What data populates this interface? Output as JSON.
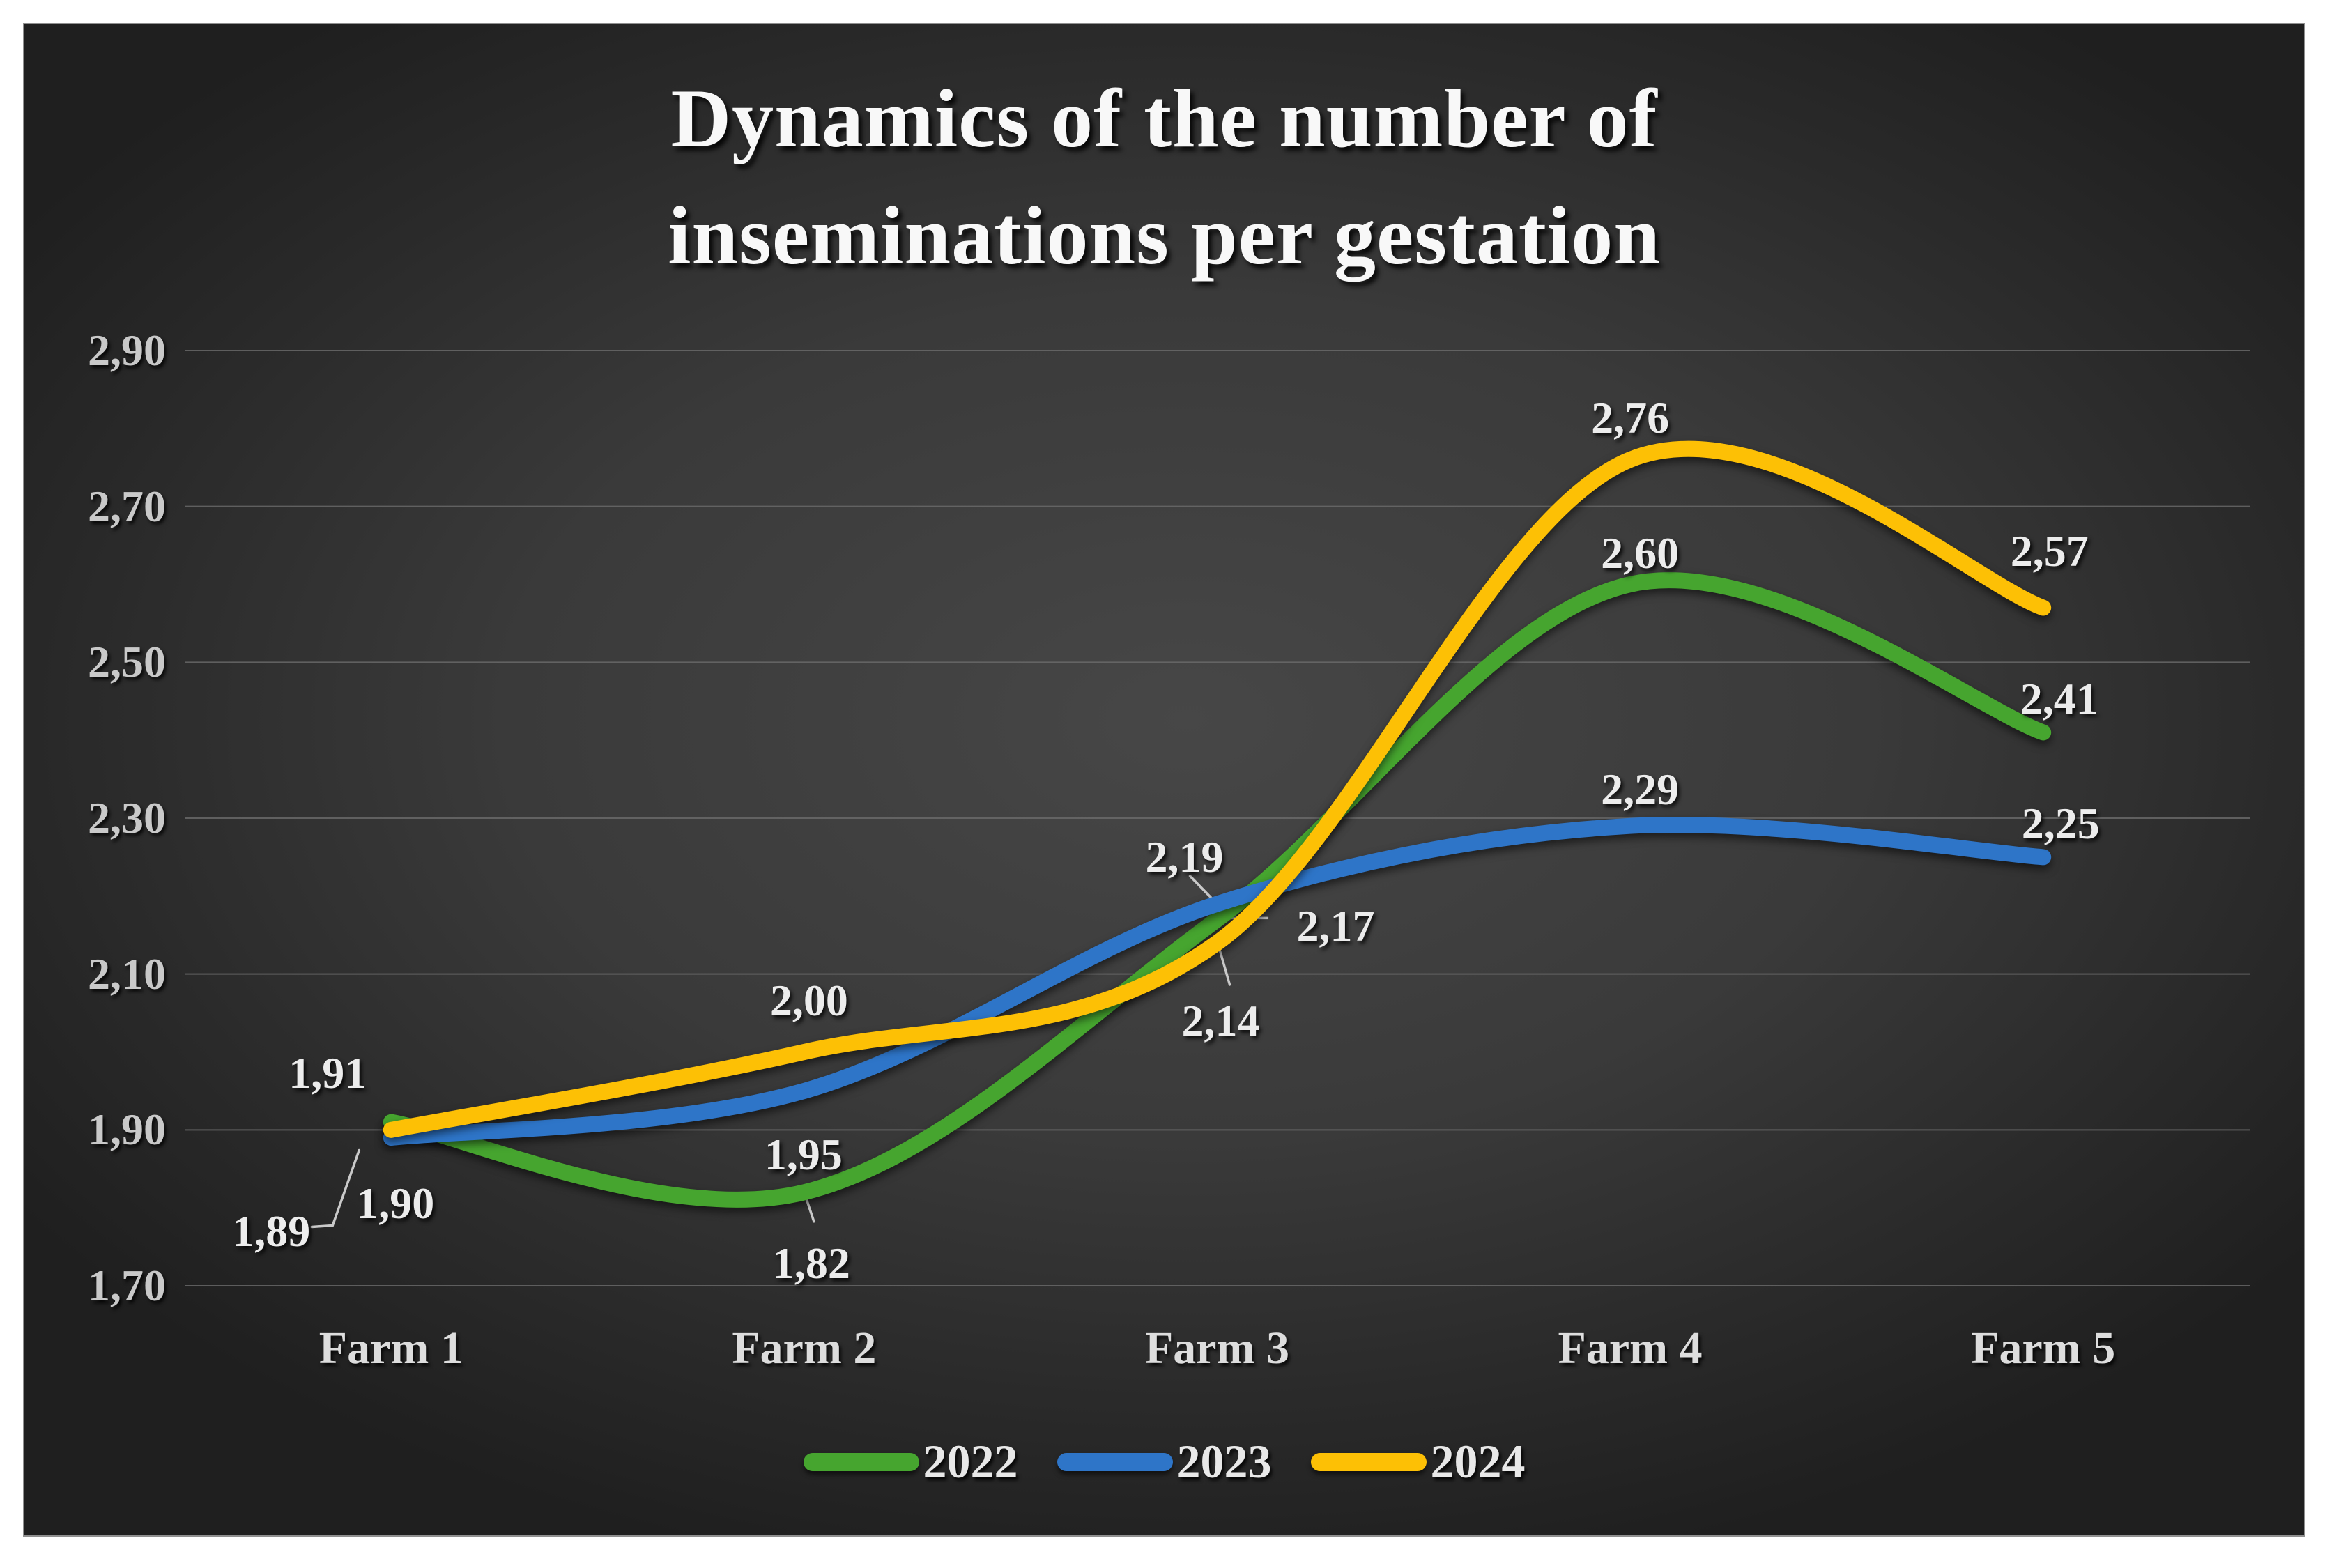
{
  "title": {
    "line1": "Dynamics of the number of",
    "line2": "inseminations per gestation"
  },
  "chart_data": {
    "type": "line",
    "title": "Dynamics of the number of inseminations per gestation",
    "categories": [
      "Farm 1",
      "Farm 2",
      "Farm 3",
      "Farm 4",
      "Farm 5"
    ],
    "series": [
      {
        "name": "2022",
        "color": "#46A52F",
        "values": [
          1.91,
          1.82,
          2.17,
          2.6,
          2.41
        ],
        "point_labels": [
          "1,91",
          "1,82",
          "2,17",
          "2,60",
          "2,41"
        ]
      },
      {
        "name": "2023",
        "color": "#2E75C8",
        "values": [
          1.89,
          1.95,
          2.19,
          2.29,
          2.25
        ],
        "point_labels": [
          "1,89",
          "1,95",
          "2,19",
          "2,29",
          "2,25"
        ]
      },
      {
        "name": "2024",
        "color": "#FDC005",
        "values": [
          1.9,
          2.0,
          2.14,
          2.76,
          2.57
        ],
        "point_labels": [
          "1,90",
          "2,00",
          "2,14",
          "2,76",
          "2,57"
        ]
      }
    ],
    "y_ticks": [
      {
        "value": 1.7,
        "label": "1,70"
      },
      {
        "value": 1.9,
        "label": "1,90"
      },
      {
        "value": 2.1,
        "label": "2,10"
      },
      {
        "value": 2.3,
        "label": "2,30"
      },
      {
        "value": 2.5,
        "label": "2,50"
      },
      {
        "value": 2.7,
        "label": "2,70"
      },
      {
        "value": 2.9,
        "label": "2,90"
      }
    ],
    "ylim": [
      1.7,
      2.9
    ],
    "grid": true,
    "smooth": true,
    "legend_position": "bottom",
    "legend": [
      "2022",
      "2023",
      "2024"
    ]
  },
  "colors": {
    "background_center": "#474747",
    "background_edge": "#1f1f1f",
    "gridline": "#6C6C6C",
    "chart_border": "#8F8F8F",
    "title_text": "#F8F8F8",
    "data_label": "#ECECEC",
    "axis_label": "#C9C9C9",
    "category_label": "#DDDDDD",
    "leader_line": "#C9C9C9"
  }
}
